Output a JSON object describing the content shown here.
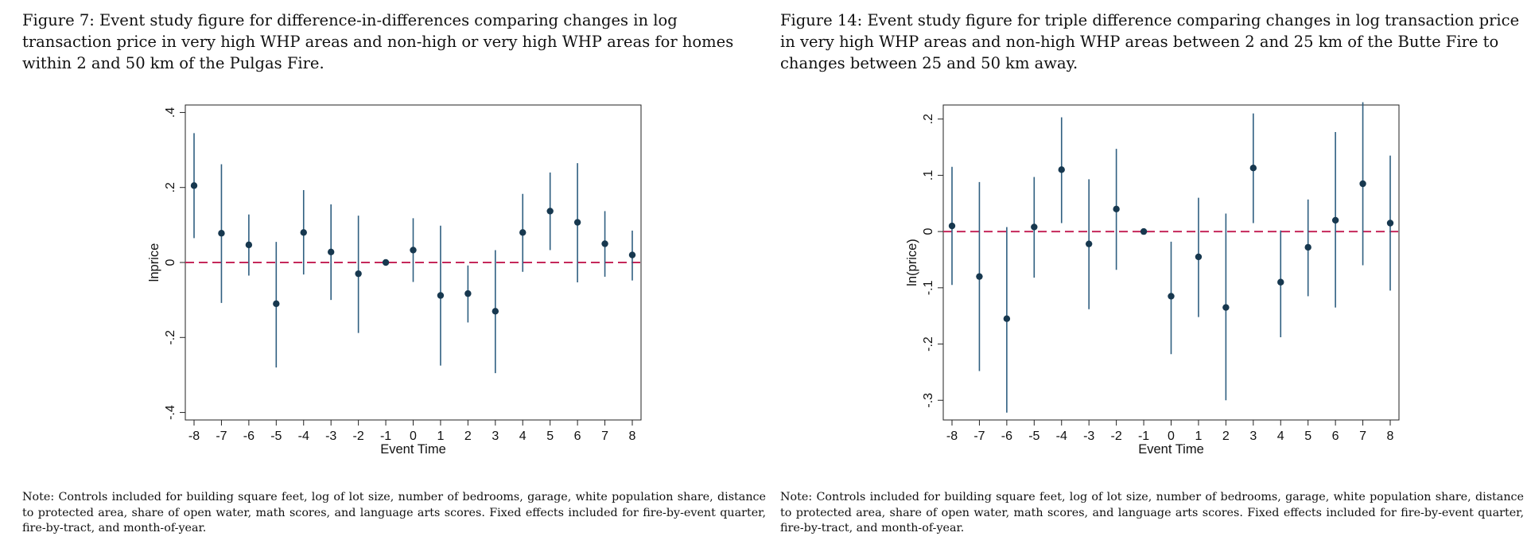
{
  "figures": [
    {
      "caption": "Figure 7: Event study figure for difference-in-differences comparing changes in log transaction price in very high WHP areas and non-high or very high WHP areas for homes within 2 and 50 km of the Pulgas Fire.",
      "note": "Note: Controls included for building square feet, log of lot size, number of bedrooms, garage, white population share, distance to protected area, share of open water, math scores, and language arts scores. Fixed effects included for fire-by-event quarter, fire-by-tract, and month-of-year."
    },
    {
      "caption": "Figure 14: Event study figure for triple difference comparing changes in log transaction price in very high WHP areas and non-high WHP areas between 2 and 25 km of the Butte Fire to changes between 25 and 50 km away.",
      "note": "Note: Controls included for building square feet, log of lot size, number of bedrooms, garage, white population share, distance to protected area, share of open water, math scores, and language arts scores. Fixed effects included for fire-by-event quarter, fire-by-tract, and month-of-year."
    }
  ],
  "chart_data": [
    {
      "type": "scatter",
      "xlabel": "Event Time",
      "ylabel": "lnprice",
      "xlim": [
        -8,
        8
      ],
      "ylim": [
        -0.42,
        0.42
      ],
      "x_ticks": [
        "-8",
        "-7",
        "-6",
        "-5",
        "-4",
        "-3",
        "-2",
        "-1",
        "0",
        "1",
        "2",
        "3",
        "4",
        "5",
        "6",
        "7",
        "8"
      ],
      "y_ticks": [
        "-.4",
        "-.2",
        "0",
        ".2",
        ".4"
      ],
      "y_tick_values": [
        -0.4,
        -0.2,
        0,
        0.2,
        0.4
      ],
      "reference_line": 0,
      "reference_line_color": "#c5285a",
      "marker_color": "#17384f",
      "ci_color": "#2f5f80",
      "x": [
        -8,
        -7,
        -6,
        -5,
        -4,
        -3,
        -2,
        -1,
        0,
        1,
        2,
        3,
        4,
        5,
        6,
        7,
        8
      ],
      "y": [
        0.205,
        0.078,
        0.047,
        -0.11,
        0.08,
        0.028,
        -0.03,
        0.0,
        0.033,
        -0.088,
        -0.083,
        -0.13,
        0.08,
        0.137,
        0.107,
        0.05,
        0.02
      ],
      "ci_low": [
        0.065,
        -0.108,
        -0.035,
        -0.28,
        -0.032,
        -0.1,
        -0.188,
        0.0,
        -0.052,
        -0.275,
        -0.16,
        -0.295,
        -0.025,
        0.033,
        -0.053,
        -0.038,
        -0.048
      ],
      "ci_high": [
        0.345,
        0.262,
        0.128,
        0.055,
        0.193,
        0.155,
        0.125,
        0.0,
        0.118,
        0.098,
        -0.008,
        0.033,
        0.183,
        0.24,
        0.265,
        0.137,
        0.085
      ]
    },
    {
      "type": "scatter",
      "xlabel": "Event Time",
      "ylabel": "ln(price)",
      "xlim": [
        -8,
        8
      ],
      "ylim": [
        -0.335,
        0.225
      ],
      "x_ticks": [
        "-8",
        "-7",
        "-6",
        "-5",
        "-4",
        "-3",
        "-2",
        "-1",
        "0",
        "1",
        "2",
        "3",
        "4",
        "5",
        "6",
        "7",
        "8"
      ],
      "y_ticks": [
        "-.3",
        "-.2",
        "-.1",
        "0",
        ".1",
        ".2"
      ],
      "y_tick_values": [
        -0.3,
        -0.2,
        -0.1,
        0,
        0.1,
        0.2
      ],
      "reference_line": 0,
      "reference_line_color": "#c5285a",
      "marker_color": "#17384f",
      "ci_color": "#2f5f80",
      "x": [
        -8,
        -7,
        -6,
        -5,
        -4,
        -3,
        -2,
        -1,
        0,
        1,
        2,
        3,
        4,
        5,
        6,
        7,
        8
      ],
      "y": [
        0.01,
        -0.08,
        -0.155,
        0.008,
        0.11,
        -0.022,
        0.04,
        0.0,
        -0.115,
        -0.045,
        -0.135,
        0.113,
        -0.09,
        -0.028,
        0.02,
        0.085,
        0.015
      ],
      "ci_low": [
        -0.095,
        -0.248,
        -0.322,
        -0.082,
        0.015,
        -0.138,
        -0.068,
        0.0,
        -0.218,
        -0.152,
        -0.3,
        0.015,
        -0.188,
        -0.115,
        -0.135,
        -0.06,
        -0.105
      ],
      "ci_high": [
        0.115,
        0.088,
        0.008,
        0.097,
        0.203,
        0.093,
        0.147,
        0.0,
        -0.018,
        0.06,
        0.032,
        0.21,
        0.002,
        0.057,
        0.177,
        0.23,
        0.135
      ]
    }
  ]
}
